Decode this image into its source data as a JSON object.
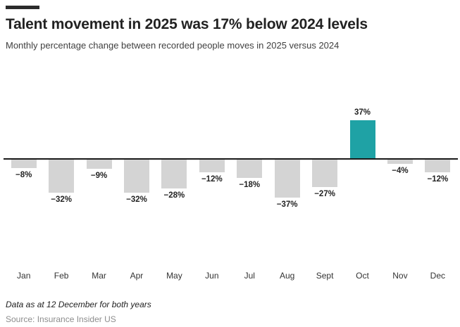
{
  "header": {
    "title": "Talent movement in 2025 was 17% below 2024 levels",
    "subtitle": "Monthly percentage change between recorded people moves in 2025 versus 2024"
  },
  "chart_data": {
    "type": "bar",
    "categories": [
      "Jan",
      "Feb",
      "Mar",
      "Apr",
      "May",
      "Jun",
      "Jul",
      "Aug",
      "Sept",
      "Oct",
      "Nov",
      "Dec"
    ],
    "values": [
      -8,
      -32,
      -9,
      -32,
      -28,
      -12,
      -18,
      -37,
      -27,
      37,
      -4,
      -12
    ],
    "value_labels": [
      "−8%",
      "−32%",
      "−9%",
      "−32%",
      "−28%",
      "−12%",
      "−18%",
      "−37%",
      "−27%",
      "37%",
      "−4%",
      "−12%"
    ],
    "title": "Talent movement in 2025 was 17% below 2024 levels",
    "subtitle": "Monthly percentage change between recorded people moves in 2025 versus 2024",
    "xlabel": "",
    "ylabel": "",
    "ylim": [
      -40,
      40
    ],
    "grid": false,
    "legend": false,
    "axis_line": "zero-baseline-only",
    "colors": {
      "negative_bar": "#d4d4d4",
      "positive_bar": "#1fa2a5",
      "axis_line": "#1a1a1a",
      "label_text": "#222222"
    }
  },
  "footer": {
    "note": "Data as at 12 December for both years",
    "source": "Source: Insurance Insider US"
  }
}
